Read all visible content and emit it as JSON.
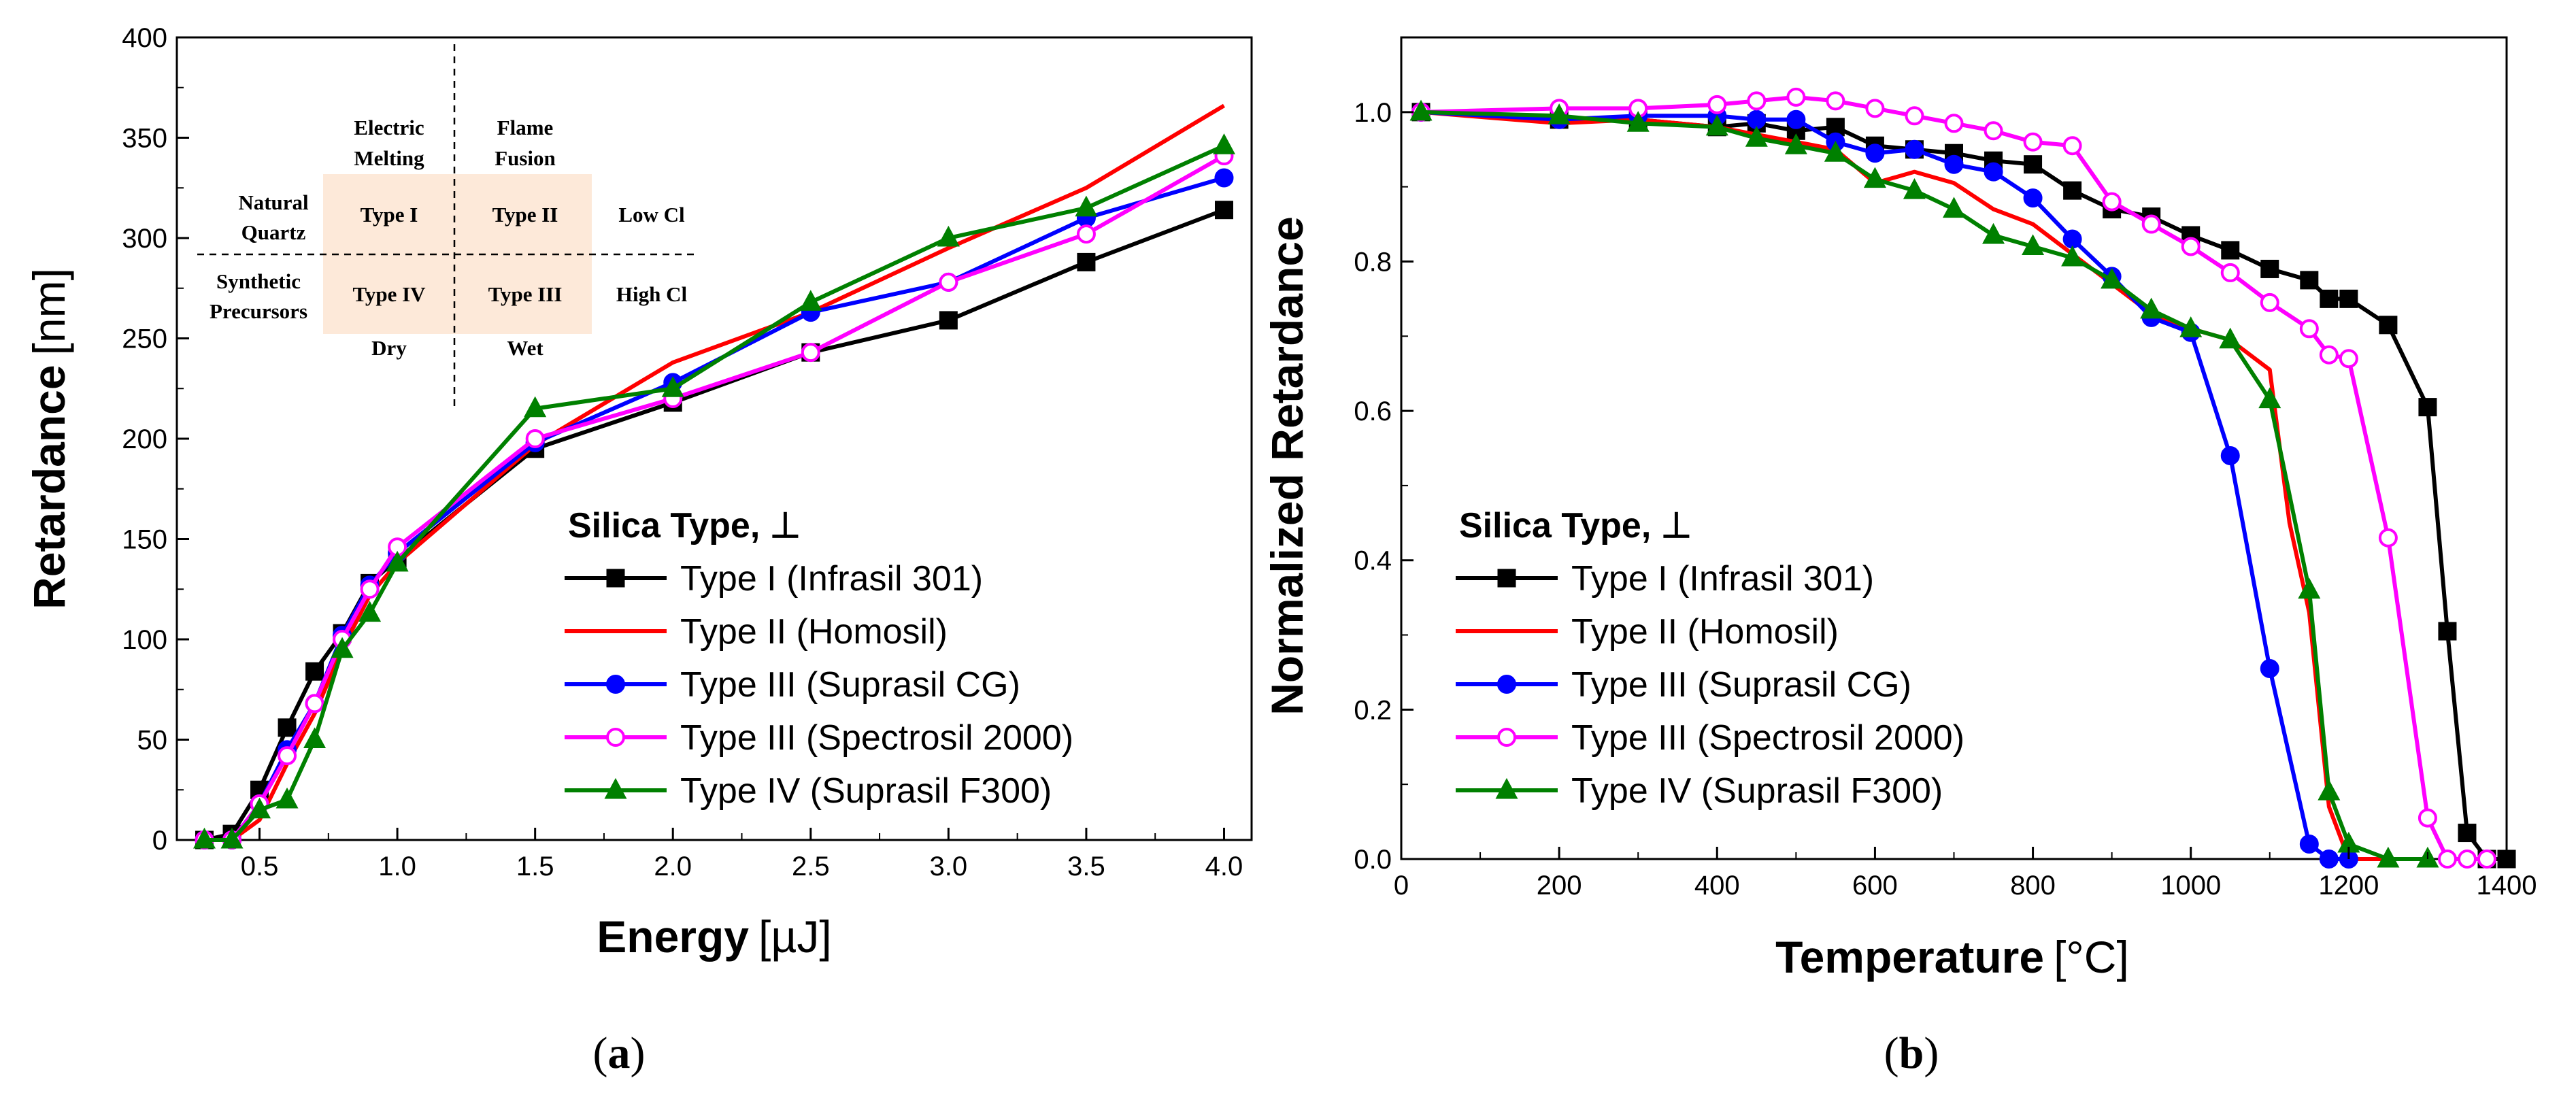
{
  "chart_data": [
    {
      "type": "line",
      "panel_label": "a",
      "xlabel_main": "Energy",
      "xlabel_unit": "[µJ]",
      "ylabel_main": "Retardance",
      "ylabel_unit": "[nm]",
      "xlim": [
        0.2,
        4.1
      ],
      "ylim": [
        0,
        400
      ],
      "xticks": [
        "0.5",
        "1.0",
        "1.5",
        "2.0",
        "2.5",
        "3.0",
        "3.5",
        "4.0"
      ],
      "xtick_values": [
        0.5,
        1.0,
        1.5,
        2.0,
        2.5,
        3.0,
        3.5,
        4.0
      ],
      "yticks": [
        "0",
        "50",
        "100",
        "150",
        "200",
        "250",
        "300",
        "350",
        "400"
      ],
      "ytick_values": [
        0,
        50,
        100,
        150,
        200,
        250,
        300,
        350,
        400
      ],
      "legend_title": "Silica Type, ⊥",
      "legend_position": "lower-right",
      "series": [
        {
          "name": "Type I (Infrasil 301)",
          "color": "#000000",
          "marker": "square",
          "fill": true,
          "x": [
            0.3,
            0.4,
            0.5,
            0.6,
            0.7,
            0.8,
            0.9,
            1.0,
            1.5,
            2.0,
            2.5,
            3.0,
            3.5,
            4.0
          ],
          "y": [
            0,
            3,
            25,
            56,
            84,
            103,
            128,
            140,
            195,
            218,
            243,
            259,
            288,
            314
          ]
        },
        {
          "name": "Type II (Homosil)",
          "color": "#ff0000",
          "marker": "none",
          "fill": false,
          "x": [
            0.3,
            0.4,
            0.5,
            0.6,
            0.7,
            0.8,
            0.9,
            1.0,
            1.5,
            2.0,
            2.5,
            3.0,
            3.5,
            4.0
          ],
          "y": [
            0,
            0,
            10,
            38,
            63,
            95,
            122,
            138,
            197,
            238,
            263,
            295,
            325,
            366
          ]
        },
        {
          "name": "Type III (Suprasil CG)",
          "color": "#0000ff",
          "marker": "circle",
          "fill": true,
          "x": [
            0.3,
            0.4,
            0.5,
            0.6,
            0.7,
            0.8,
            0.9,
            1.0,
            1.5,
            2.0,
            2.5,
            3.0,
            3.5,
            4.0
          ],
          "y": [
            0,
            0,
            18,
            45,
            68,
            102,
            127,
            143,
            198,
            228,
            263,
            278,
            310,
            330
          ]
        },
        {
          "name": "Type III (Spectrosil 2000)",
          "color": "#ff00ff",
          "marker": "circle",
          "fill": false,
          "x": [
            0.3,
            0.4,
            0.5,
            0.6,
            0.7,
            0.8,
            0.9,
            1.0,
            1.5,
            2.0,
            2.5,
            3.0,
            3.5,
            4.0
          ],
          "y": [
            0,
            0,
            18,
            42,
            68,
            100,
            125,
            146,
            200,
            220,
            243,
            278,
            302,
            341
          ]
        },
        {
          "name": "Type IV (Suprasil F300)",
          "color": "#008000",
          "marker": "triangle",
          "fill": true,
          "x": [
            0.3,
            0.4,
            0.5,
            0.6,
            0.7,
            0.8,
            0.9,
            1.0,
            1.5,
            2.0,
            2.5,
            3.0,
            3.5,
            4.0
          ],
          "y": [
            0,
            0,
            15,
            20,
            50,
            95,
            113,
            138,
            215,
            225,
            268,
            300,
            315,
            346
          ]
        }
      ],
      "inset": {
        "col1": "Electric",
        "col1b": "Melting",
        "col2": "Flame",
        "col2b": "Fusion",
        "row1a": "Natural",
        "row1b": "Quartz",
        "row2a": "Synthetic",
        "row2b": "Precursors",
        "cell11": "Type I",
        "cell12": "Type II",
        "cell21": "Type IV",
        "cell22": "Type III",
        "right1": "Low Cl",
        "right2": "High Cl",
        "bottom1": "Dry",
        "bottom2": "Wet",
        "cell_color": "#fde9d9"
      }
    },
    {
      "type": "line",
      "panel_label": "b",
      "xlabel_main": "Temperature",
      "xlabel_unit": "[°C]",
      "ylabel_main": "Normalized Retardance",
      "xlim": [
        0,
        1400
      ],
      "ylim": [
        0,
        1.1
      ],
      "xticks": [
        "0",
        "200",
        "400",
        "600",
        "800",
        "1000",
        "1200",
        "1400"
      ],
      "xtick_values": [
        0,
        200,
        400,
        600,
        800,
        1000,
        1200,
        1400
      ],
      "yticks": [
        "0.0",
        "0.2",
        "0.4",
        "0.6",
        "0.8",
        "1.0"
      ],
      "ytick_values": [
        0.0,
        0.2,
        0.4,
        0.6,
        0.8,
        1.0
      ],
      "legend_title": "Silica Type, ⊥",
      "legend_position": "lower-left",
      "series": [
        {
          "name": "Type I (Infrasil 301)",
          "color": "#000000",
          "marker": "square",
          "fill": true,
          "x": [
            25,
            200,
            300,
            400,
            450,
            500,
            550,
            600,
            650,
            700,
            750,
            800,
            850,
            900,
            950,
            1000,
            1050,
            1100,
            1150,
            1175,
            1200,
            1250,
            1300,
            1325,
            1350,
            1375,
            1400
          ],
          "y": [
            1.0,
            0.99,
            0.99,
            0.98,
            0.985,
            0.975,
            0.98,
            0.955,
            0.95,
            0.945,
            0.935,
            0.93,
            0.895,
            0.87,
            0.86,
            0.835,
            0.815,
            0.79,
            0.775,
            0.75,
            0.75,
            0.715,
            0.605,
            0.305,
            0.035,
            0.0,
            0.0
          ]
        },
        {
          "name": "Type II (Homosil)",
          "color": "#ff0000",
          "marker": "none",
          "fill": false,
          "x": [
            25,
            200,
            300,
            400,
            450,
            500,
            550,
            600,
            650,
            700,
            750,
            800,
            850,
            900,
            950,
            1000,
            1050,
            1100,
            1125,
            1150,
            1175,
            1200,
            1225,
            1250
          ],
          "y": [
            1.0,
            0.985,
            0.99,
            0.98,
            0.97,
            0.96,
            0.95,
            0.905,
            0.92,
            0.905,
            0.87,
            0.85,
            0.81,
            0.77,
            0.73,
            0.71,
            0.695,
            0.655,
            0.45,
            0.33,
            0.07,
            0.0,
            0.0,
            0.0
          ]
        },
        {
          "name": "Type III (Suprasil CG)",
          "color": "#0000ff",
          "marker": "circle",
          "fill": true,
          "x": [
            25,
            200,
            300,
            400,
            450,
            500,
            550,
            600,
            650,
            700,
            750,
            800,
            850,
            900,
            950,
            1000,
            1050,
            1100,
            1150,
            1175,
            1200
          ],
          "y": [
            1.0,
            0.99,
            0.995,
            0.995,
            0.99,
            0.99,
            0.96,
            0.945,
            0.95,
            0.93,
            0.92,
            0.885,
            0.83,
            0.78,
            0.725,
            0.705,
            0.54,
            0.255,
            0.02,
            0.0,
            0.0
          ]
        },
        {
          "name": "Type III (Spectrosil 2000)",
          "color": "#ff00ff",
          "marker": "circle",
          "fill": false,
          "x": [
            25,
            200,
            300,
            400,
            450,
            500,
            550,
            600,
            650,
            700,
            750,
            800,
            850,
            900,
            950,
            1000,
            1050,
            1100,
            1150,
            1175,
            1200,
            1250,
            1300,
            1325,
            1350,
            1375
          ],
          "y": [
            1.0,
            1.005,
            1.005,
            1.01,
            1.015,
            1.02,
            1.015,
            1.005,
            0.995,
            0.985,
            0.975,
            0.96,
            0.955,
            0.88,
            0.85,
            0.82,
            0.785,
            0.745,
            0.71,
            0.675,
            0.67,
            0.43,
            0.055,
            0.0,
            0.0,
            0.0
          ]
        },
        {
          "name": "Type IV (Suprasil F300)",
          "color": "#008000",
          "marker": "triangle",
          "fill": true,
          "x": [
            25,
            200,
            300,
            400,
            450,
            500,
            550,
            600,
            650,
            700,
            750,
            800,
            850,
            900,
            950,
            1000,
            1050,
            1100,
            1150,
            1175,
            1200,
            1250,
            1300
          ],
          "y": [
            1.0,
            0.995,
            0.985,
            0.98,
            0.965,
            0.955,
            0.945,
            0.91,
            0.895,
            0.87,
            0.835,
            0.82,
            0.805,
            0.775,
            0.735,
            0.71,
            0.695,
            0.615,
            0.36,
            0.09,
            0.02,
            0.0,
            0.0
          ]
        }
      ]
    }
  ]
}
